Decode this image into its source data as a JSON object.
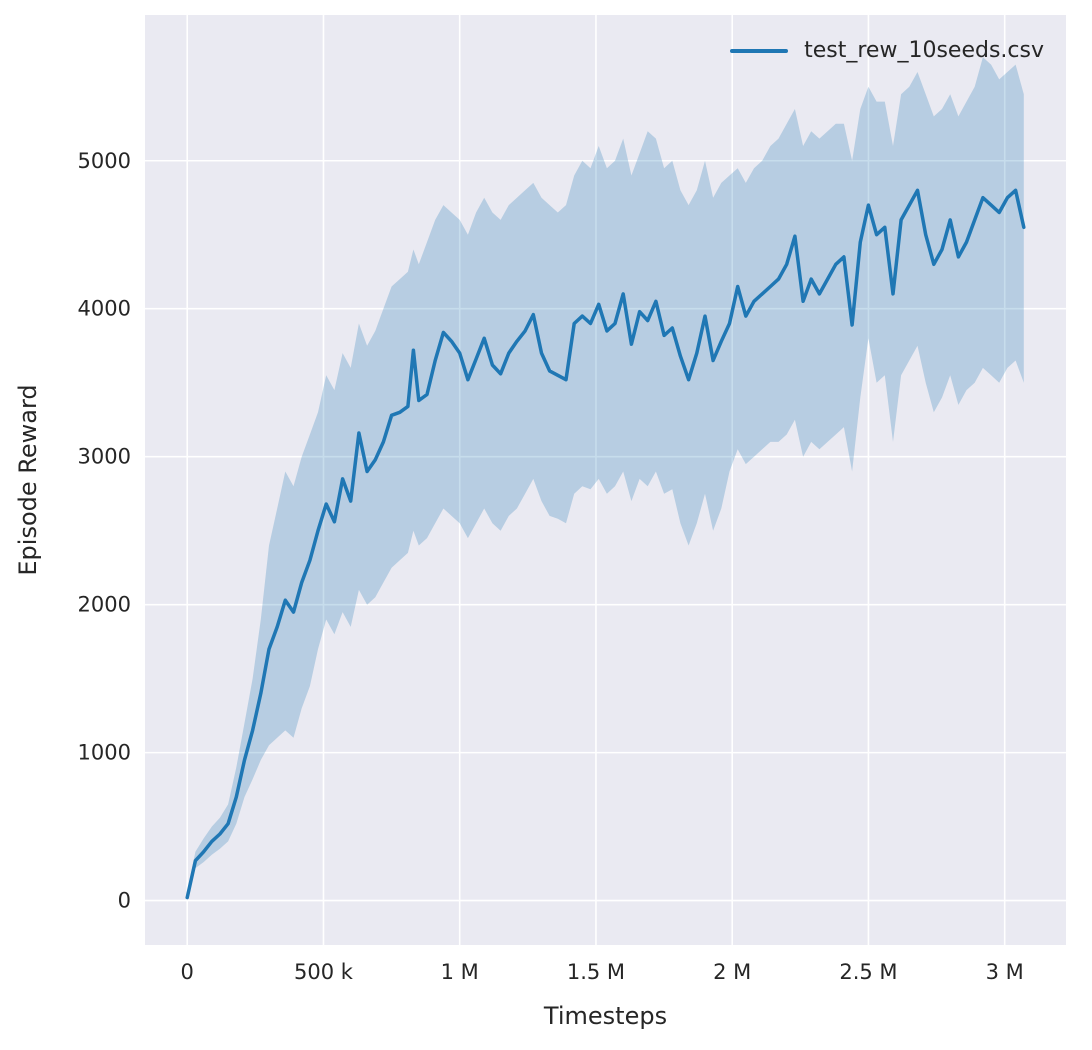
{
  "figure": {
    "background": "#ffffff",
    "plot_background": "#eaeaf2",
    "grid_color": "#ffffff",
    "text_color": "#262626"
  },
  "chart_data": {
    "type": "line",
    "title": "",
    "xlabel": "Timesteps",
    "ylabel": "Episode Reward",
    "grid": true,
    "legend_position": "upper right",
    "legend": [
      {
        "label": "test_rew_10seeds.csv",
        "color": "#1f77b4"
      }
    ],
    "xlim": [
      -155000,
      3225000
    ],
    "ylim": [
      -300,
      5985
    ],
    "xticks": [
      {
        "value": 0,
        "label": "0"
      },
      {
        "value": 500000,
        "label": "500 k"
      },
      {
        "value": 1000000,
        "label": "1 M"
      },
      {
        "value": 1500000,
        "label": "1.5 M"
      },
      {
        "value": 2000000,
        "label": "2 M"
      },
      {
        "value": 2500000,
        "label": "2.5 M"
      },
      {
        "value": 3000000,
        "label": "3 M"
      }
    ],
    "yticks": [
      {
        "value": 0,
        "label": "0"
      },
      {
        "value": 1000,
        "label": "1000"
      },
      {
        "value": 2000,
        "label": "2000"
      },
      {
        "value": 3000,
        "label": "3000"
      },
      {
        "value": 4000,
        "label": "4000"
      },
      {
        "value": 5000,
        "label": "5000"
      }
    ],
    "series": [
      {
        "name": "test_rew_10seeds.csv",
        "color": "#1f77b4",
        "band_color": "rgba(31,119,180,0.25)",
        "line_width": 3.5,
        "x": [
          0,
          30000,
          60000,
          90000,
          120000,
          150000,
          180000,
          210000,
          240000,
          270000,
          300000,
          330000,
          360000,
          390000,
          420000,
          450000,
          480000,
          510000,
          540000,
          570000,
          600000,
          630000,
          660000,
          690000,
          720000,
          750000,
          780000,
          810000,
          830000,
          850000,
          880000,
          910000,
          940000,
          970000,
          1000000,
          1030000,
          1060000,
          1090000,
          1120000,
          1150000,
          1180000,
          1210000,
          1240000,
          1270000,
          1300000,
          1330000,
          1360000,
          1390000,
          1420000,
          1450000,
          1480000,
          1510000,
          1540000,
          1570000,
          1600000,
          1630000,
          1660000,
          1690000,
          1720000,
          1750000,
          1780000,
          1810000,
          1840000,
          1870000,
          1900000,
          1930000,
          1960000,
          1990000,
          2020000,
          2050000,
          2080000,
          2110000,
          2140000,
          2170000,
          2200000,
          2230000,
          2260000,
          2290000,
          2320000,
          2350000,
          2380000,
          2410000,
          2440000,
          2470000,
          2500000,
          2530000,
          2560000,
          2590000,
          2620000,
          2650000,
          2680000,
          2710000,
          2740000,
          2770000,
          2800000,
          2830000,
          2860000,
          2890000,
          2920000,
          2950000,
          2980000,
          3010000,
          3040000,
          3070000
        ],
        "mean": [
          20,
          270,
          330,
          400,
          450,
          520,
          700,
          950,
          1150,
          1400,
          1700,
          1850,
          2030,
          1950,
          2150,
          2300,
          2500,
          2680,
          2560,
          2850,
          2700,
          3160,
          2900,
          2980,
          3100,
          3280,
          3300,
          3340,
          3720,
          3380,
          3420,
          3650,
          3840,
          3780,
          3700,
          3520,
          3660,
          3800,
          3620,
          3560,
          3700,
          3780,
          3850,
          3960,
          3700,
          3580,
          3550,
          3520,
          3900,
          3950,
          3900,
          4030,
          3850,
          3900,
          4100,
          3760,
          3980,
          3920,
          4050,
          3820,
          3870,
          3680,
          3520,
          3700,
          3950,
          3650,
          3780,
          3900,
          4150,
          3950,
          4050,
          4100,
          4150,
          4200,
          4300,
          4490,
          4050,
          4200,
          4100,
          4200,
          4300,
          4350,
          3890,
          4450,
          4700,
          4500,
          4550,
          4100,
          4600,
          4700,
          4800,
          4500,
          4300,
          4400,
          4600,
          4350,
          4450,
          4600,
          4750,
          4700,
          4650,
          4750,
          4800,
          4550
        ],
        "lo": [
          0,
          220,
          260,
          310,
          350,
          400,
          520,
          700,
          820,
          950,
          1050,
          1100,
          1150,
          1100,
          1300,
          1450,
          1700,
          1900,
          1800,
          1950,
          1850,
          2100,
          2000,
          2050,
          2150,
          2250,
          2300,
          2350,
          2500,
          2400,
          2450,
          2550,
          2650,
          2600,
          2550,
          2450,
          2550,
          2650,
          2550,
          2500,
          2600,
          2650,
          2750,
          2850,
          2700,
          2600,
          2580,
          2550,
          2750,
          2800,
          2780,
          2850,
          2750,
          2800,
          2900,
          2700,
          2850,
          2800,
          2900,
          2750,
          2780,
          2550,
          2400,
          2550,
          2750,
          2500,
          2650,
          2900,
          3050,
          2950,
          3000,
          3050,
          3100,
          3100,
          3150,
          3250,
          3000,
          3100,
          3050,
          3100,
          3150,
          3200,
          2900,
          3400,
          3800,
          3500,
          3550,
          3100,
          3550,
          3650,
          3750,
          3500,
          3300,
          3400,
          3550,
          3350,
          3450,
          3500,
          3600,
          3550,
          3500,
          3600,
          3650,
          3500
        ],
        "hi": [
          60,
          330,
          420,
          500,
          560,
          650,
          900,
          1200,
          1500,
          1900,
          2400,
          2650,
          2900,
          2800,
          3000,
          3150,
          3300,
          3550,
          3450,
          3700,
          3600,
          3900,
          3750,
          3850,
          4000,
          4150,
          4200,
          4250,
          4400,
          4300,
          4450,
          4600,
          4700,
          4650,
          4600,
          4500,
          4650,
          4750,
          4650,
          4600,
          4700,
          4750,
          4800,
          4850,
          4750,
          4700,
          4650,
          4700,
          4900,
          5000,
          4950,
          5100,
          4950,
          5000,
          5150,
          4900,
          5050,
          5200,
          5150,
          4950,
          5000,
          4800,
          4700,
          4800,
          5000,
          4750,
          4850,
          4900,
          4950,
          4850,
          4950,
          5000,
          5100,
          5150,
          5250,
          5350,
          5100,
          5200,
          5150,
          5200,
          5250,
          5250,
          5000,
          5350,
          5500,
          5400,
          5400,
          5100,
          5450,
          5500,
          5600,
          5450,
          5300,
          5350,
          5450,
          5300,
          5400,
          5500,
          5700,
          5650,
          5550,
          5600,
          5650,
          5450
        ]
      }
    ]
  }
}
